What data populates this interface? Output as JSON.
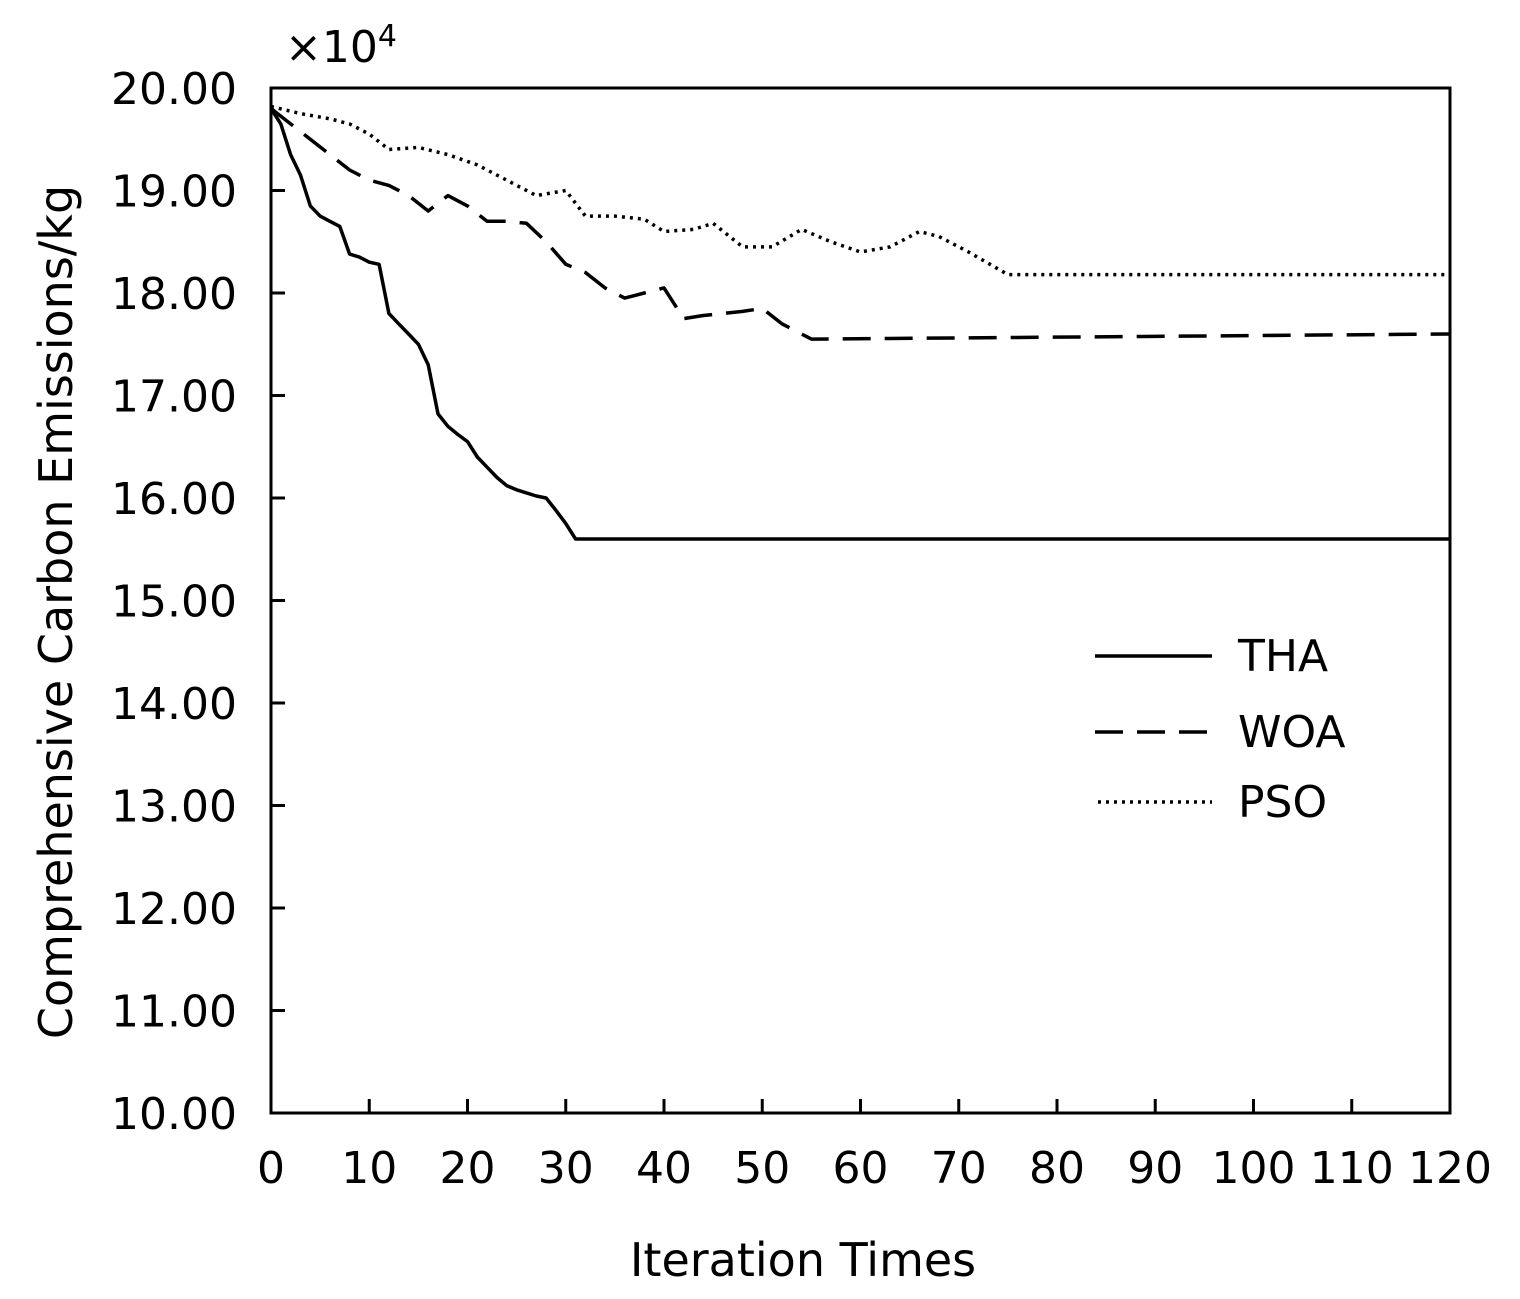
{
  "chart_data": {
    "type": "line",
    "title": "",
    "xlabel": "Iteration Times",
    "ylabel": "Comprehensive Carbon Emissions/kg",
    "y_multiplier_label": "×10",
    "y_multiplier_exponent": "4",
    "xlim": [
      0,
      120
    ],
    "ylim": [
      10,
      20
    ],
    "x_ticks": [
      0,
      10,
      20,
      30,
      40,
      50,
      60,
      70,
      80,
      90,
      100,
      110,
      120
    ],
    "x_tick_labels": [
      "0",
      "10",
      "20",
      "30",
      "40",
      "50",
      "60",
      "70",
      "80",
      "90",
      "100",
      "110",
      "120"
    ],
    "y_ticks": [
      10,
      11,
      12,
      13,
      14,
      15,
      16,
      17,
      18,
      19,
      20
    ],
    "y_tick_labels": [
      "10.00",
      "11.00",
      "12.00",
      "13.00",
      "14.00",
      "15.00",
      "16.00",
      "17.00",
      "18.00",
      "19.00",
      "20.00"
    ],
    "grid": false,
    "legend_position": "right-middle",
    "series": [
      {
        "name": "THA",
        "style": "solid",
        "color": "#000000",
        "x": [
          0,
          1,
          2,
          3,
          4,
          5,
          6,
          7,
          8,
          9,
          10,
          11,
          12,
          13,
          14,
          15,
          16,
          17,
          18,
          19,
          20,
          21,
          22,
          23,
          24,
          25,
          26,
          27,
          28,
          29,
          30,
          31,
          32,
          120
        ],
        "y": [
          19.8,
          19.65,
          19.35,
          19.15,
          18.85,
          18.75,
          18.7,
          18.65,
          18.38,
          18.35,
          18.3,
          18.28,
          17.8,
          17.7,
          17.6,
          17.5,
          17.3,
          16.82,
          16.7,
          16.62,
          16.55,
          16.4,
          16.3,
          16.2,
          16.12,
          16.08,
          16.05,
          16.02,
          16.0,
          15.88,
          15.75,
          15.6,
          15.6,
          15.6
        ]
      },
      {
        "name": "WOA",
        "style": "dashed",
        "color": "#000000",
        "x": [
          0,
          2,
          4,
          6,
          8,
          10,
          12,
          14,
          16,
          18,
          20,
          22,
          24,
          26,
          28,
          30,
          32,
          34,
          36,
          38,
          40,
          42,
          44,
          46,
          48,
          50,
          52,
          55,
          120
        ],
        "y": [
          19.8,
          19.65,
          19.5,
          19.35,
          19.2,
          19.1,
          19.05,
          18.95,
          18.8,
          18.95,
          18.85,
          18.7,
          18.7,
          18.68,
          18.5,
          18.28,
          18.2,
          18.05,
          17.95,
          18.0,
          18.05,
          17.75,
          17.78,
          17.8,
          17.82,
          17.85,
          17.7,
          17.55,
          17.6
        ]
      },
      {
        "name": "PSO",
        "style": "dotted",
        "color": "#000000",
        "x": [
          0,
          3,
          6,
          8,
          10,
          12,
          15,
          18,
          21,
          24,
          27,
          30,
          32,
          35,
          38,
          40,
          43,
          45,
          48,
          51,
          54,
          57,
          60,
          63,
          66,
          68,
          71,
          75,
          120
        ],
        "y": [
          19.82,
          19.75,
          19.7,
          19.65,
          19.55,
          19.4,
          19.42,
          19.35,
          19.25,
          19.1,
          18.95,
          19.0,
          18.75,
          18.75,
          18.72,
          18.6,
          18.62,
          18.68,
          18.45,
          18.45,
          18.62,
          18.5,
          18.4,
          18.45,
          18.6,
          18.55,
          18.4,
          18.18,
          18.18
        ]
      }
    ]
  }
}
